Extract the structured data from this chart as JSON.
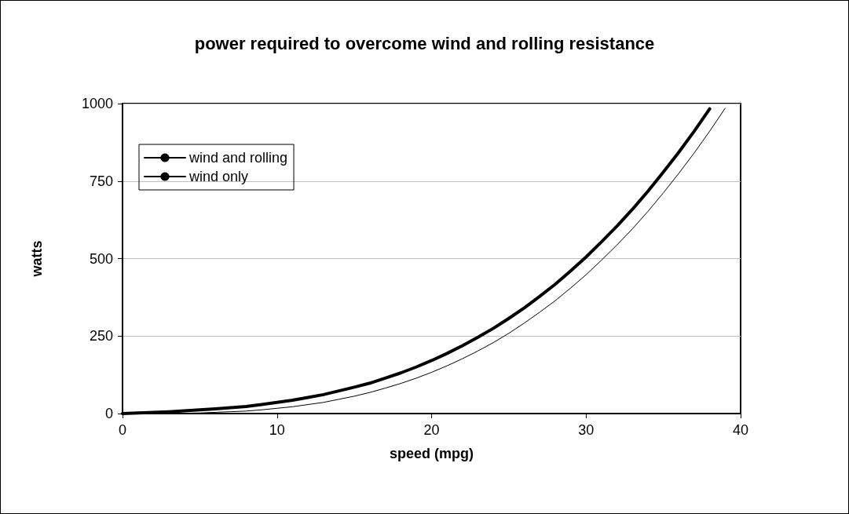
{
  "chart_data": {
    "type": "line",
    "title": "power required to overcome wind and rolling resistance",
    "xlabel": "speed (mpg)",
    "ylabel": "watts",
    "x": [
      0,
      1,
      2,
      3,
      4,
      5,
      6,
      7,
      8,
      9,
      10,
      11,
      12,
      13,
      14,
      15,
      16,
      17,
      18,
      19,
      20,
      21,
      22,
      23,
      24,
      25,
      26,
      27,
      28,
      29,
      30,
      31,
      32,
      33,
      34,
      35,
      36,
      37,
      38,
      39
    ],
    "series": [
      {
        "name": "wind and rolling",
        "color": "#000000",
        "values": [
          0,
          2,
          4,
          6,
          9,
          12,
          15,
          19,
          23,
          29,
          36,
          43,
          52,
          61,
          73,
          85,
          98,
          114,
          131,
          150,
          171,
          194,
          219,
          246,
          275,
          307,
          341,
          378,
          417,
          460,
          505,
          554,
          605,
          659,
          717,
          779,
          843,
          911,
          983,
          null
        ]
      },
      {
        "name": "wind only",
        "color": "#000000",
        "values": [
          0,
          0,
          0,
          0,
          1,
          2,
          4,
          6,
          8,
          12,
          17,
          22,
          29,
          36,
          46,
          56,
          68,
          82,
          97,
          114,
          133,
          154,
          177,
          202,
          229,
          259,
          292,
          327,
          364,
          405,
          448,
          495,
          544,
          596,
          652,
          712,
          775,
          841,
          911,
          985
        ]
      }
    ],
    "xlim": [
      0,
      40
    ],
    "xticks": [
      0,
      10,
      20,
      30,
      40
    ],
    "ylim": [
      0,
      1000
    ],
    "yticks": [
      0,
      250,
      500,
      750,
      1000
    ],
    "grid": "y",
    "legend": "top left",
    "marker": "none",
    "line_style": "solid"
  }
}
